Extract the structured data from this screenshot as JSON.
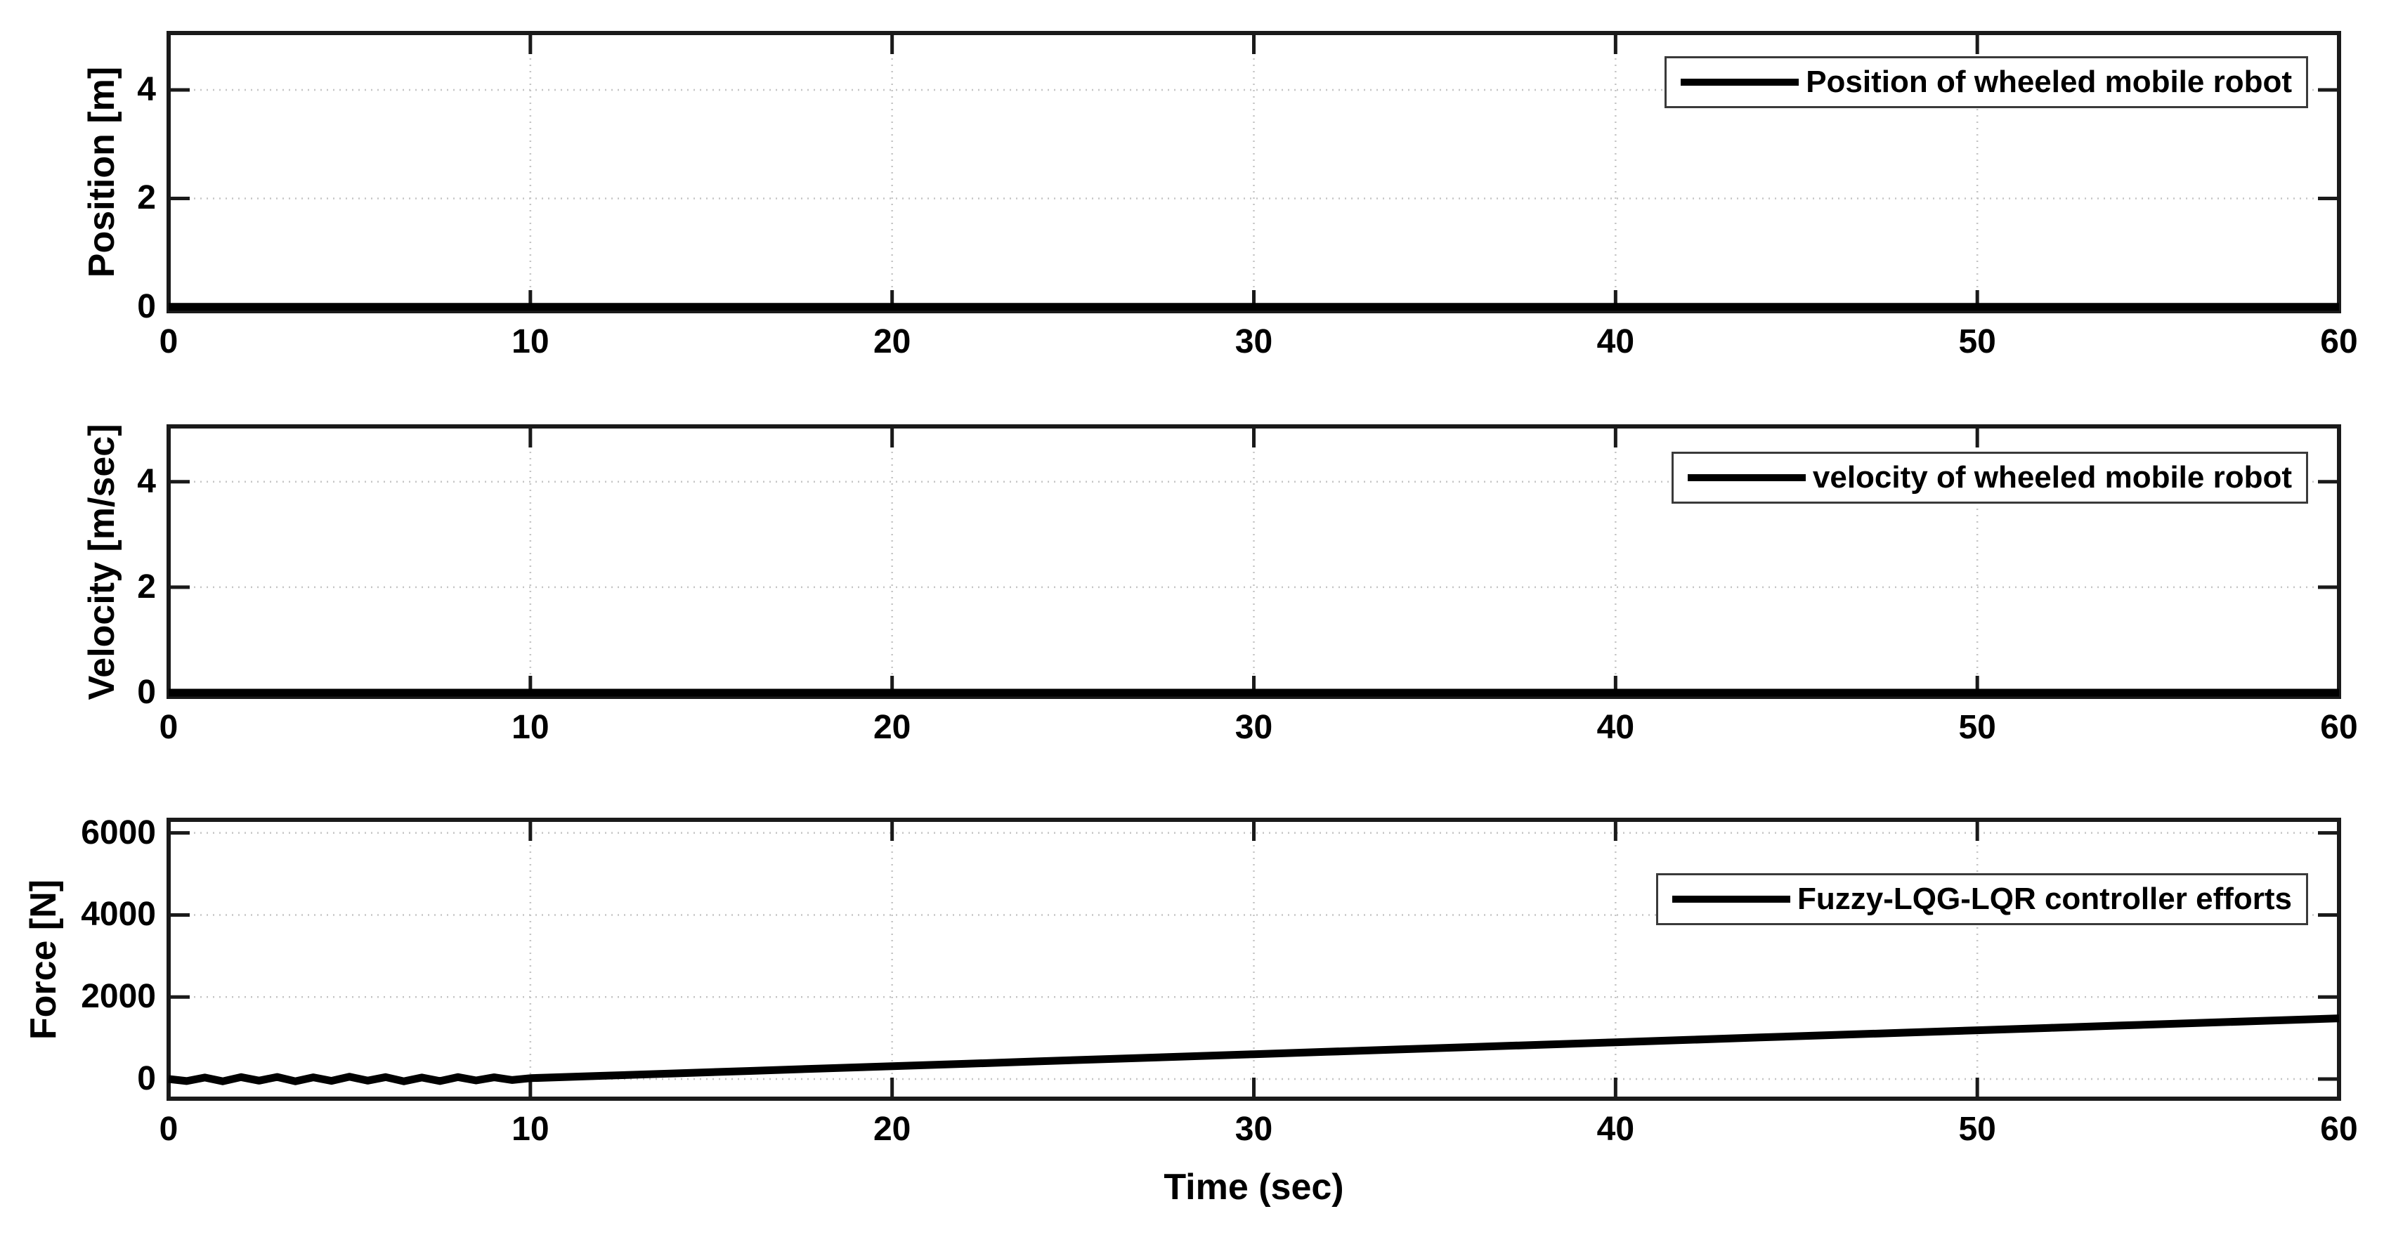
{
  "figure": {
    "background": "#ffffff",
    "text_color": "#000000",
    "line_color": "#000000",
    "grid_color": "#c5c5c5",
    "xlabel": "Time (sec)"
  },
  "chart_data": [
    {
      "type": "line",
      "ylabel": "Position [m]",
      "legend_label": "Position of wheeled mobile robot",
      "legend_position": "top-right",
      "grid": true,
      "xlim": [
        0,
        60
      ],
      "ylim": [
        -0.08,
        5.05
      ],
      "xticks": [
        0,
        10,
        20,
        30,
        40,
        50,
        60
      ],
      "xtick_labels": [
        "0",
        "10",
        "20",
        "30",
        "40",
        "50",
        "60"
      ],
      "yticks": [
        0,
        2,
        4
      ],
      "ytick_labels": [
        "0",
        "2",
        "4"
      ],
      "series": [
        {
          "name": "Position of wheeled mobile robot",
          "x": [
            0,
            60
          ],
          "y": [
            0,
            0
          ]
        }
      ]
    },
    {
      "type": "line",
      "ylabel": "Velocity [m/sec]",
      "legend_label": "velocity of wheeled mobile robot",
      "legend_position": "top-right",
      "grid": true,
      "xlim": [
        0,
        60
      ],
      "ylim": [
        -0.08,
        5.05
      ],
      "xticks": [
        0,
        10,
        20,
        30,
        40,
        50,
        60
      ],
      "xtick_labels": [
        "0",
        "10",
        "20",
        "30",
        "40",
        "50",
        "60"
      ],
      "yticks": [
        0,
        2,
        4
      ],
      "ytick_labels": [
        "0",
        "2",
        "4"
      ],
      "series": [
        {
          "name": "velocity of wheeled mobile robot",
          "x": [
            0,
            60
          ],
          "y": [
            0,
            0
          ]
        }
      ]
    },
    {
      "type": "line",
      "ylabel": "Force [N]",
      "legend_label": "Fuzzy-LQG-LQR controller efforts",
      "legend_position": "top-right",
      "grid": true,
      "xlabel": "Time (sec)",
      "xlim": [
        0,
        60
      ],
      "ylim": [
        -480,
        6320
      ],
      "xticks": [
        0,
        10,
        20,
        30,
        40,
        50,
        60
      ],
      "xtick_labels": [
        "0",
        "10",
        "20",
        "30",
        "40",
        "50",
        "60"
      ],
      "yticks": [
        0,
        2000,
        4000,
        6000
      ],
      "ytick_labels": [
        "0",
        "2000",
        "4000",
        "6000"
      ],
      "series": [
        {
          "name": "Fuzzy-LQG-LQR controller efforts",
          "x": [
            0,
            0.5,
            1,
            1.5,
            2,
            2.5,
            3,
            3.5,
            4,
            4.5,
            5,
            5.5,
            6,
            6.5,
            7,
            7.5,
            8,
            8.5,
            9,
            9.5,
            10,
            12,
            14,
            16,
            18,
            20,
            22,
            24,
            26,
            28,
            30,
            32,
            34,
            36,
            38,
            40,
            42,
            44,
            46,
            48,
            50,
            52,
            54,
            56,
            58,
            60
          ],
          "y": [
            0,
            -50,
            35,
            -55,
            45,
            -40,
            50,
            -55,
            40,
            -45,
            55,
            -40,
            45,
            -55,
            35,
            -50,
            45,
            -35,
            40,
            -25,
            20,
            78,
            137,
            195,
            254,
            312,
            370,
            429,
            487,
            546,
            604,
            662,
            721,
            779,
            838,
            896,
            954,
            1013,
            1071,
            1130,
            1188,
            1246,
            1305,
            1363,
            1422,
            1480
          ]
        }
      ]
    }
  ]
}
